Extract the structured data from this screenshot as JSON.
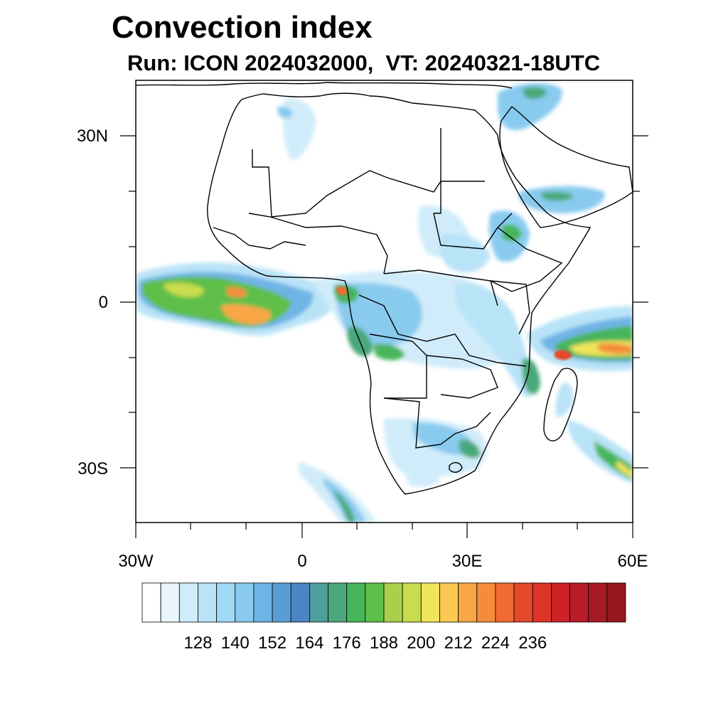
{
  "title": "Convection index",
  "subtitle": "Run: ICON 2024032000,  VT: 20240321-18UTC",
  "map": {
    "lat_labels": [
      "30N",
      "0",
      "30S"
    ],
    "lon_labels": [
      "30W",
      "0",
      "30E",
      "60E"
    ],
    "lat_range": [
      -40,
      40
    ],
    "lon_range": [
      -30,
      60
    ],
    "region": "Africa and adjacent Atlantic / Indian Ocean"
  },
  "colorbar": {
    "colors": [
      "#ffffff",
      "#e8f5fc",
      "#d0ecfa",
      "#b9e3f7",
      "#a1d9f5",
      "#89cbef",
      "#70b4e6",
      "#5a9dd6",
      "#4b86c3",
      "#4e9e9e",
      "#4aa87a",
      "#46b55a",
      "#5fbf4a",
      "#a8d04a",
      "#c8dc4e",
      "#f0e45a",
      "#fbc952",
      "#f9a646",
      "#f68c3b",
      "#f06a31",
      "#e44a2a",
      "#dd3427",
      "#cc2228",
      "#b91b27",
      "#a81a22",
      "#94181e"
    ],
    "labels": [
      "128",
      "140",
      "152",
      "164",
      "176",
      "188",
      "200",
      "212",
      "224",
      "236"
    ]
  }
}
